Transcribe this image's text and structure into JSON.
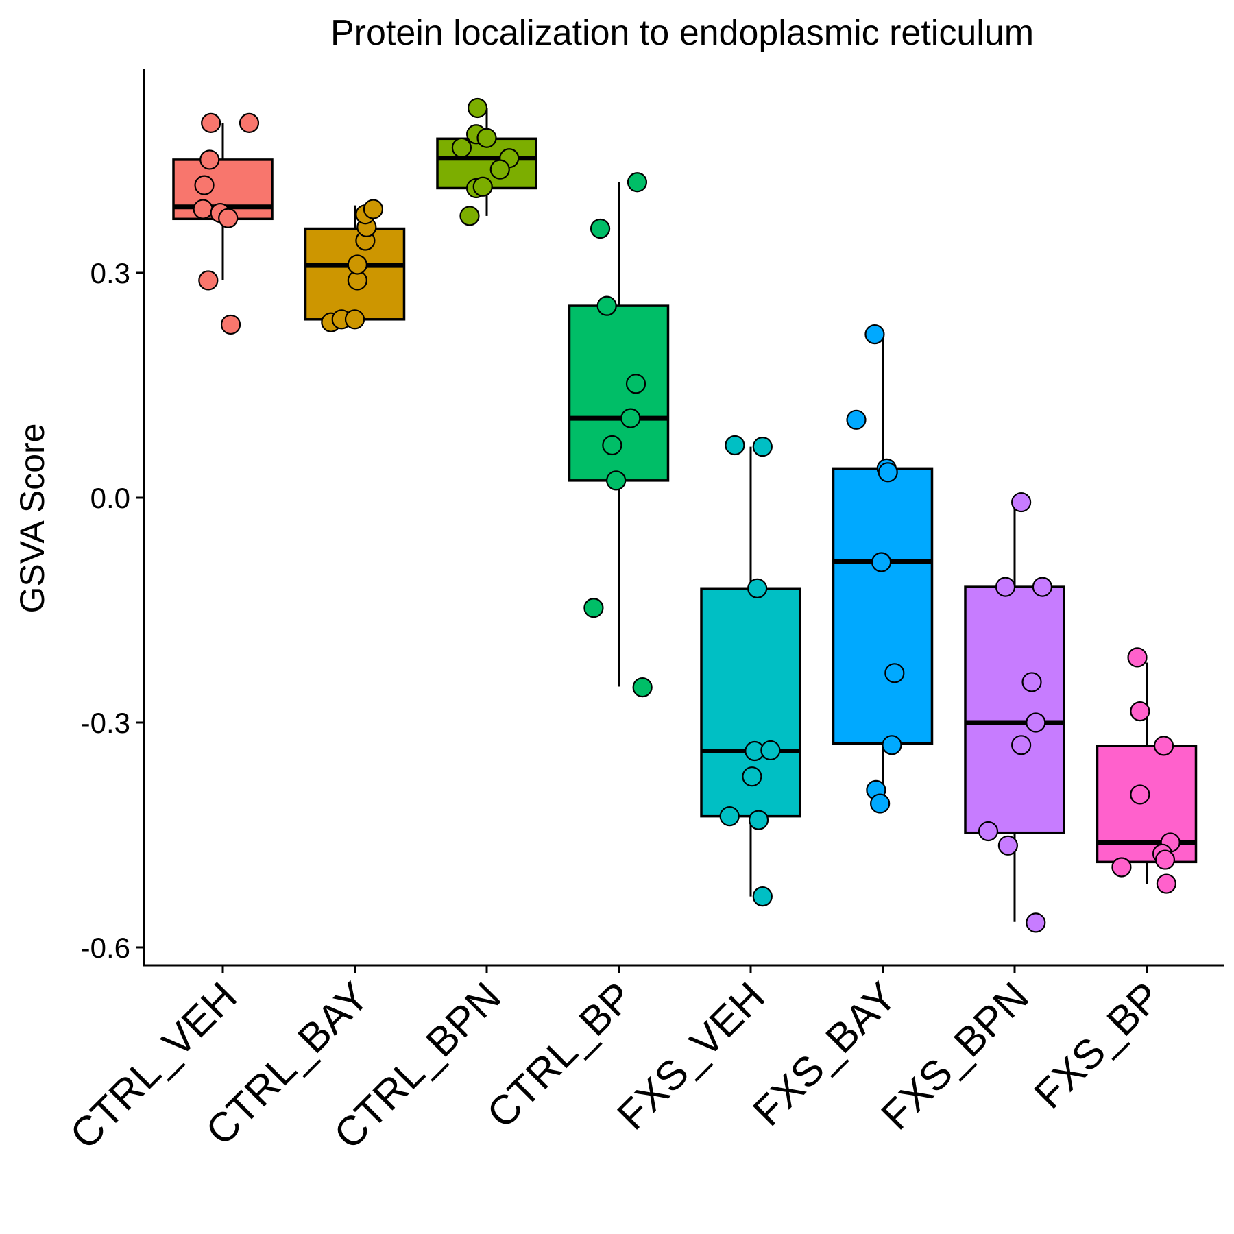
{
  "chart_data": {
    "type": "box",
    "title": "Protein localization to endoplasmic reticulum",
    "xlabel": "",
    "ylabel": "GSVA Score",
    "ylim": [
      -0.62,
      0.57
    ],
    "yticks": [
      0.3,
      0.0,
      -0.3,
      -0.6
    ],
    "ytick_labels": [
      "0.3",
      "0.0",
      "-0.3",
      "-0.6"
    ],
    "grid": false,
    "legend": "none",
    "categories": [
      "CTRL_VEH",
      "CTRL_BAY",
      "CTRL_BPN",
      "CTRL_BP",
      "FXS_VEH",
      "FXS_BAY",
      "FXS_BPN",
      "FXS_BP"
    ],
    "colors": [
      "#F8766D",
      "#CD9600",
      "#7CAE00",
      "#00BE67",
      "#00BFC4",
      "#00A9FF",
      "#C77CFF",
      "#FF61CC"
    ],
    "boxes": [
      {
        "whisker_low": 0.29,
        "q1": 0.372,
        "median": 0.388,
        "q3": 0.451,
        "whisker_high": 0.5
      },
      {
        "whisker_low": 0.238,
        "q1": 0.238,
        "median": 0.31,
        "q3": 0.359,
        "whisker_high": 0.39
      },
      {
        "whisker_low": 0.376,
        "q1": 0.413,
        "median": 0.453,
        "q3": 0.479,
        "whisker_high": 0.52
      },
      {
        "whisker_low": -0.252,
        "q1": 0.023,
        "median": 0.106,
        "q3": 0.256,
        "whisker_high": 0.421
      },
      {
        "whisker_low": -0.532,
        "q1": -0.425,
        "median": -0.338,
        "q3": -0.121,
        "whisker_high": 0.068
      },
      {
        "whisker_low": -0.396,
        "q1": -0.328,
        "median": -0.085,
        "q3": 0.039,
        "whisker_high": 0.218
      },
      {
        "whisker_low": -0.566,
        "q1": -0.447,
        "median": -0.3,
        "q3": -0.119,
        "whisker_high": -0.009
      },
      {
        "whisker_low": -0.515,
        "q1": -0.486,
        "median": -0.46,
        "q3": -0.331,
        "whisker_high": -0.22
      }
    ],
    "points": [
      [
        {
          "x": -0.09,
          "y": 0.5
        },
        {
          "x": 0.2,
          "y": 0.5
        },
        {
          "x": -0.1,
          "y": 0.451
        },
        {
          "x": -0.14,
          "y": 0.417
        },
        {
          "x": -0.15,
          "y": 0.385
        },
        {
          "x": -0.02,
          "y": 0.38
        },
        {
          "x": 0.04,
          "y": 0.373
        },
        {
          "x": -0.11,
          "y": 0.29
        },
        {
          "x": 0.06,
          "y": 0.231
        }
      ],
      [
        {
          "x": -0.18,
          "y": 0.234
        },
        {
          "x": -0.1,
          "y": 0.238
        },
        {
          "x": 0.0,
          "y": 0.238
        },
        {
          "x": 0.02,
          "y": 0.29
        },
        {
          "x": 0.02,
          "y": 0.311
        },
        {
          "x": 0.08,
          "y": 0.343
        },
        {
          "x": 0.09,
          "y": 0.361
        },
        {
          "x": 0.08,
          "y": 0.378
        },
        {
          "x": 0.14,
          "y": 0.385
        }
      ],
      [
        {
          "x": -0.07,
          "y": 0.52
        },
        {
          "x": -0.08,
          "y": 0.485
        },
        {
          "x": 0.0,
          "y": 0.48
        },
        {
          "x": -0.19,
          "y": 0.467
        },
        {
          "x": 0.17,
          "y": 0.453
        },
        {
          "x": 0.1,
          "y": 0.438
        },
        {
          "x": -0.08,
          "y": 0.413
        },
        {
          "x": -0.03,
          "y": 0.415
        },
        {
          "x": -0.13,
          "y": 0.376
        }
      ],
      [
        {
          "x": 0.14,
          "y": 0.421
        },
        {
          "x": -0.14,
          "y": 0.359
        },
        {
          "x": -0.09,
          "y": 0.256
        },
        {
          "x": 0.13,
          "y": 0.152
        },
        {
          "x": 0.09,
          "y": 0.106
        },
        {
          "x": -0.05,
          "y": 0.07
        },
        {
          "x": -0.02,
          "y": 0.023
        },
        {
          "x": -0.19,
          "y": -0.147
        },
        {
          "x": 0.18,
          "y": -0.253
        }
      ],
      [
        {
          "x": -0.12,
          "y": 0.07
        },
        {
          "x": 0.09,
          "y": 0.068
        },
        {
          "x": 0.05,
          "y": -0.121
        },
        {
          "x": 0.03,
          "y": -0.338
        },
        {
          "x": 0.15,
          "y": -0.337
        },
        {
          "x": 0.01,
          "y": -0.372
        },
        {
          "x": -0.16,
          "y": -0.425
        },
        {
          "x": 0.06,
          "y": -0.43
        },
        {
          "x": 0.09,
          "y": -0.532
        }
      ],
      [
        {
          "x": -0.06,
          "y": 0.218
        },
        {
          "x": -0.2,
          "y": 0.104
        },
        {
          "x": 0.03,
          "y": 0.039
        },
        {
          "x": 0.04,
          "y": 0.034
        },
        {
          "x": -0.01,
          "y": -0.086
        },
        {
          "x": 0.09,
          "y": -0.234
        },
        {
          "x": 0.07,
          "y": -0.33
        },
        {
          "x": -0.05,
          "y": -0.39
        },
        {
          "x": -0.02,
          "y": -0.408
        }
      ],
      [
        {
          "x": 0.05,
          "y": -0.006
        },
        {
          "x": -0.07,
          "y": -0.119
        },
        {
          "x": 0.21,
          "y": -0.119
        },
        {
          "x": 0.13,
          "y": -0.246
        },
        {
          "x": 0.16,
          "y": -0.3
        },
        {
          "x": 0.05,
          "y": -0.33
        },
        {
          "x": -0.2,
          "y": -0.445
        },
        {
          "x": -0.05,
          "y": -0.464
        },
        {
          "x": 0.16,
          "y": -0.567
        }
      ],
      [
        {
          "x": -0.07,
          "y": -0.213
        },
        {
          "x": -0.05,
          "y": -0.285
        },
        {
          "x": 0.13,
          "y": -0.331
        },
        {
          "x": -0.05,
          "y": -0.396
        },
        {
          "x": 0.18,
          "y": -0.46
        },
        {
          "x": 0.12,
          "y": -0.475
        },
        {
          "x": 0.14,
          "y": -0.483
        },
        {
          "x": -0.19,
          "y": -0.493
        },
        {
          "x": 0.15,
          "y": -0.515
        }
      ]
    ]
  }
}
